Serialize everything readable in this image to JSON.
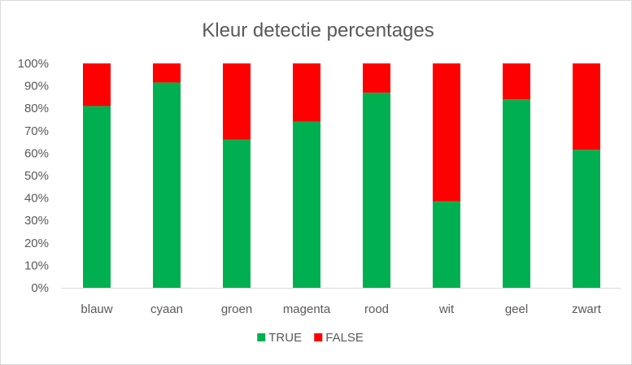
{
  "chart_data": {
    "type": "bar",
    "stacked": true,
    "title": "Kleur detectie percentages",
    "xlabel": "",
    "ylabel": "",
    "ylim": [
      0,
      1
    ],
    "yticks": [
      "0%",
      "10%",
      "20%",
      "30%",
      "40%",
      "50%",
      "60%",
      "70%",
      "80%",
      "90%",
      "100%"
    ],
    "categories": [
      "blauw",
      "cyaan",
      "groen",
      "magenta",
      "rood",
      "wit",
      "geel",
      "zwart"
    ],
    "series": [
      {
        "name": "TRUE",
        "color": "#00b050",
        "values": [
          0.81,
          0.915,
          0.66,
          0.74,
          0.87,
          0.385,
          0.84,
          0.615
        ]
      },
      {
        "name": "FALSE",
        "color": "#ff0000",
        "values": [
          0.19,
          0.085,
          0.34,
          0.26,
          0.13,
          0.615,
          0.16,
          0.385
        ]
      }
    ],
    "grid": false,
    "legend_position": "bottom"
  }
}
